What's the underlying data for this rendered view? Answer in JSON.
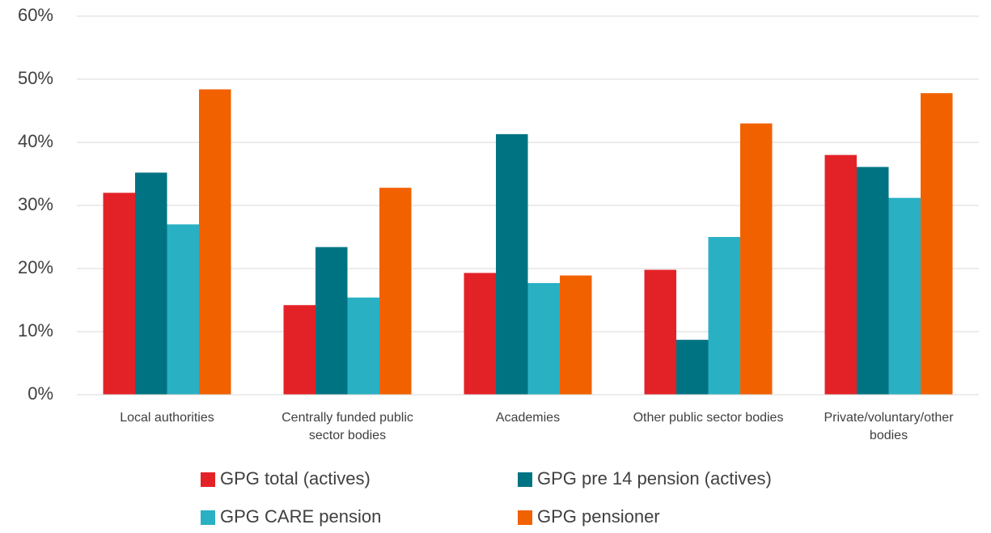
{
  "chart_data": {
    "type": "bar",
    "categories": [
      "Local authorities",
      "Centrally funded public sector bodies",
      "Academies",
      "Other public sector bodies",
      "Private/voluntary/other bodies"
    ],
    "series": [
      {
        "name": "GPG total (actives)",
        "color": "#e32227",
        "values": [
          32,
          14.2,
          19.3,
          19.8,
          38
        ]
      },
      {
        "name": "GPG pre 14 pension (actives)",
        "color": "#007383",
        "values": [
          35.2,
          23.4,
          41.3,
          8.7,
          36.1
        ]
      },
      {
        "name": "GPG CARE pension",
        "color": "#29b0c3",
        "values": [
          27,
          15.4,
          17.7,
          25,
          31.2
        ]
      },
      {
        "name": "GPG pensioner",
        "color": "#f26100",
        "values": [
          48.4,
          32.8,
          18.9,
          43,
          47.8
        ]
      }
    ],
    "ylim": [
      0,
      60
    ],
    "yticks": [
      {
        "value": 0,
        "label": "0%"
      },
      {
        "value": 10,
        "label": "10%"
      },
      {
        "value": 20,
        "label": "20%"
      },
      {
        "value": 30,
        "label": "30%"
      },
      {
        "value": 40,
        "label": "40%"
      },
      {
        "value": 50,
        "label": "50%"
      },
      {
        "value": 60,
        "label": "60%"
      }
    ],
    "grid": true,
    "legend": "bottom"
  }
}
